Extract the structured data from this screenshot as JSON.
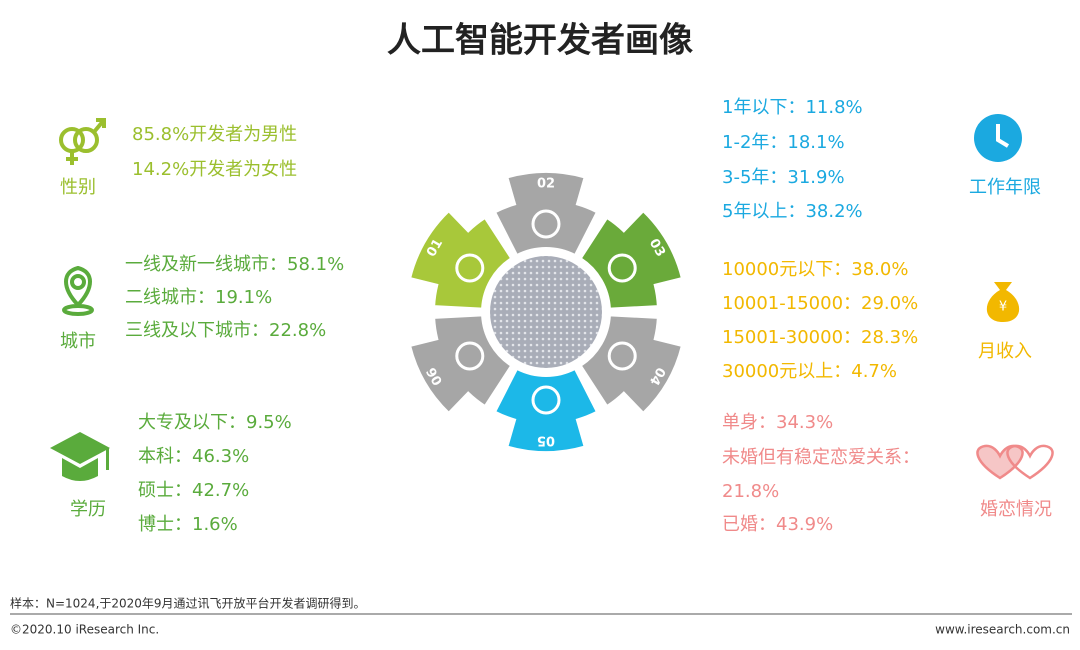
{
  "title": "人工智能开发者画像",
  "gear": {
    "labels": [
      "01",
      "02",
      "03",
      "04",
      "05",
      "06"
    ]
  },
  "sections": {
    "gender": {
      "label": "性别",
      "lines": [
        "85.8%开发者为男性",
        "14.2%开发者为女性"
      ]
    },
    "city": {
      "label": "城市",
      "lines": [
        "一线及新一线城市：58.1%",
        "二线城市：19.1%",
        "三线及以下城市：22.8%"
      ]
    },
    "education": {
      "label": "学历",
      "lines": [
        "大专及以下：9.5%",
        "本科：46.3%",
        "硕士：42.7%",
        "博士：1.6%"
      ]
    },
    "work_years": {
      "label": "工作年限",
      "lines": [
        "1年以下：11.8%",
        "1-2年：18.1%",
        "3-5年：31.9%",
        "5年以上：38.2%"
      ]
    },
    "income": {
      "label": "月收入",
      "lines": [
        "10000元以下：38.0%",
        "10001-15000：29.0%",
        "15001-30000：28.3%",
        "30000元以上：4.7%"
      ]
    },
    "marriage": {
      "label": "婚恋情况",
      "lines": [
        "单身：34.3%",
        "未婚但有稳定恋爱关系：",
        "21.8%",
        "已婚：43.9%"
      ]
    }
  },
  "footer": {
    "note": "样本：N=1024,于2020年9月通过讯飞开放平台开发者调研得到。",
    "copyright": "©2020.10 iResearch Inc.",
    "website": "www.iresearch.com.cn"
  }
}
